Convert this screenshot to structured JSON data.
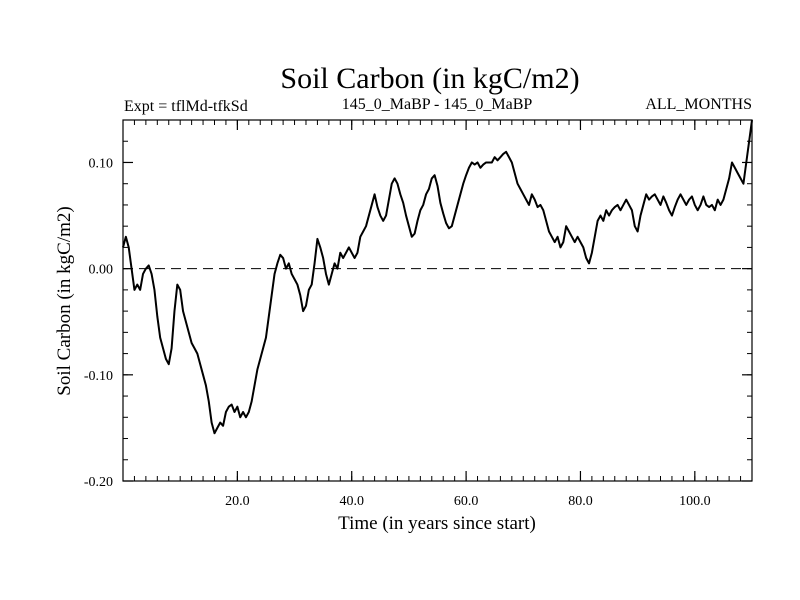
{
  "chart_data": {
    "type": "line",
    "title": "Soil Carbon (in kgC/m2)",
    "subtitle_left": "Expt = tflMd-tfkSd",
    "subtitle_center": "145_0_MaBP - 145_0_MaBP",
    "subtitle_right": "ALL_MONTHS",
    "xlabel": "Time (in years since start)",
    "ylabel": "Soil Carbon (in kgC/m2)",
    "xlim": [
      0,
      110
    ],
    "ylim": [
      -0.2,
      0.14
    ],
    "x_ticks": [
      {
        "value": 20,
        "label": "20.0"
      },
      {
        "value": 40,
        "label": "40.0"
      },
      {
        "value": 60,
        "label": "60.0"
      },
      {
        "value": 80,
        "label": "80.0"
      },
      {
        "value": 100,
        "label": "100.0"
      }
    ],
    "y_ticks": [
      {
        "value": 0.1,
        "label": "0.10"
      },
      {
        "value": 0.0,
        "label": "0.00"
      },
      {
        "value": -0.1,
        "label": "-0.10"
      },
      {
        "value": -0.2,
        "label": "-0.20"
      }
    ],
    "x_minor_step": 2,
    "y_minor_step": 0.02,
    "zero_line": {
      "y": 0,
      "style": "dashed"
    },
    "series": [
      {
        "name": "Soil Carbon",
        "color": "#000000",
        "points": [
          [
            0,
            0.02
          ],
          [
            0.5,
            0.03
          ],
          [
            1,
            0.02
          ],
          [
            1.5,
            0.0
          ],
          [
            2,
            -0.02
          ],
          [
            2.5,
            -0.015
          ],
          [
            3,
            -0.02
          ],
          [
            3.5,
            -0.005
          ],
          [
            4,
            0.0
          ],
          [
            4.5,
            0.003
          ],
          [
            5,
            -0.005
          ],
          [
            5.5,
            -0.02
          ],
          [
            6,
            -0.045
          ],
          [
            6.5,
            -0.065
          ],
          [
            7,
            -0.075
          ],
          [
            7.5,
            -0.085
          ],
          [
            8,
            -0.09
          ],
          [
            8.5,
            -0.075
          ],
          [
            9,
            -0.04
          ],
          [
            9.5,
            -0.015
          ],
          [
            10,
            -0.02
          ],
          [
            10.5,
            -0.04
          ],
          [
            11,
            -0.05
          ],
          [
            11.5,
            -0.06
          ],
          [
            12,
            -0.07
          ],
          [
            12.5,
            -0.075
          ],
          [
            13,
            -0.08
          ],
          [
            13.5,
            -0.09
          ],
          [
            14,
            -0.1
          ],
          [
            14.5,
            -0.11
          ],
          [
            15,
            -0.125
          ],
          [
            15.5,
            -0.145
          ],
          [
            16,
            -0.155
          ],
          [
            16.5,
            -0.15
          ],
          [
            17,
            -0.145
          ],
          [
            17.5,
            -0.148
          ],
          [
            18,
            -0.135
          ],
          [
            18.5,
            -0.13
          ],
          [
            19,
            -0.128
          ],
          [
            19.5,
            -0.135
          ],
          [
            20,
            -0.13
          ],
          [
            20.5,
            -0.14
          ],
          [
            21,
            -0.135
          ],
          [
            21.5,
            -0.14
          ],
          [
            22,
            -0.135
          ],
          [
            22.5,
            -0.125
          ],
          [
            23,
            -0.11
          ],
          [
            23.5,
            -0.095
          ],
          [
            24,
            -0.085
          ],
          [
            24.5,
            -0.075
          ],
          [
            25,
            -0.065
          ],
          [
            25.5,
            -0.045
          ],
          [
            26,
            -0.025
          ],
          [
            26.5,
            -0.005
          ],
          [
            27,
            0.005
          ],
          [
            27.5,
            0.013
          ],
          [
            28,
            0.01
          ],
          [
            28.5,
            0.0
          ],
          [
            29,
            0.005
          ],
          [
            29.5,
            -0.005
          ],
          [
            30,
            -0.01
          ],
          [
            30.5,
            -0.015
          ],
          [
            31,
            -0.025
          ],
          [
            31.5,
            -0.04
          ],
          [
            32,
            -0.035
          ],
          [
            32.5,
            -0.02
          ],
          [
            33,
            -0.015
          ],
          [
            33.5,
            0.005
          ],
          [
            34,
            0.028
          ],
          [
            34.5,
            0.02
          ],
          [
            35,
            0.01
          ],
          [
            35.5,
            -0.005
          ],
          [
            36,
            -0.015
          ],
          [
            36.5,
            -0.005
          ],
          [
            37,
            0.005
          ],
          [
            37.5,
            0.0
          ],
          [
            38,
            0.015
          ],
          [
            38.5,
            0.01
          ],
          [
            39,
            0.015
          ],
          [
            39.5,
            0.02
          ],
          [
            40,
            0.015
          ],
          [
            40.5,
            0.01
          ],
          [
            41,
            0.015
          ],
          [
            41.5,
            0.03
          ],
          [
            42,
            0.035
          ],
          [
            42.5,
            0.04
          ],
          [
            43,
            0.05
          ],
          [
            43.5,
            0.06
          ],
          [
            44,
            0.07
          ],
          [
            44.5,
            0.058
          ],
          [
            45,
            0.05
          ],
          [
            45.5,
            0.045
          ],
          [
            46,
            0.05
          ],
          [
            46.5,
            0.065
          ],
          [
            47,
            0.08
          ],
          [
            47.5,
            0.085
          ],
          [
            48,
            0.08
          ],
          [
            48.5,
            0.07
          ],
          [
            49,
            0.062
          ],
          [
            49.5,
            0.05
          ],
          [
            50,
            0.04
          ],
          [
            50.5,
            0.03
          ],
          [
            51,
            0.033
          ],
          [
            51.5,
            0.045
          ],
          [
            52,
            0.055
          ],
          [
            52.5,
            0.06
          ],
          [
            53,
            0.07
          ],
          [
            53.5,
            0.075
          ],
          [
            54,
            0.085
          ],
          [
            54.5,
            0.088
          ],
          [
            55,
            0.078
          ],
          [
            55.5,
            0.062
          ],
          [
            56,
            0.052
          ],
          [
            56.5,
            0.043
          ],
          [
            57,
            0.038
          ],
          [
            57.5,
            0.04
          ],
          [
            58,
            0.05
          ],
          [
            58.5,
            0.06
          ],
          [
            59,
            0.07
          ],
          [
            59.5,
            0.08
          ],
          [
            60,
            0.088
          ],
          [
            60.5,
            0.095
          ],
          [
            61,
            0.1
          ],
          [
            61.5,
            0.098
          ],
          [
            62,
            0.1
          ],
          [
            62.5,
            0.095
          ],
          [
            63,
            0.098
          ],
          [
            63.5,
            0.1
          ],
          [
            64,
            0.1
          ],
          [
            64.5,
            0.1
          ],
          [
            65,
            0.105
          ],
          [
            65.5,
            0.102
          ],
          [
            66,
            0.105
          ],
          [
            66.5,
            0.108
          ],
          [
            67,
            0.11
          ],
          [
            67.5,
            0.105
          ],
          [
            68,
            0.1
          ],
          [
            68.5,
            0.09
          ],
          [
            69,
            0.08
          ],
          [
            69.5,
            0.075
          ],
          [
            70,
            0.07
          ],
          [
            70.5,
            0.065
          ],
          [
            71,
            0.06
          ],
          [
            71.5,
            0.07
          ],
          [
            72,
            0.065
          ],
          [
            72.5,
            0.058
          ],
          [
            73,
            0.06
          ],
          [
            73.5,
            0.055
          ],
          [
            74,
            0.045
          ],
          [
            74.5,
            0.035
          ],
          [
            75,
            0.03
          ],
          [
            75.5,
            0.025
          ],
          [
            76,
            0.03
          ],
          [
            76.5,
            0.02
          ],
          [
            77,
            0.025
          ],
          [
            77.5,
            0.04
          ],
          [
            78,
            0.035
          ],
          [
            78.5,
            0.03
          ],
          [
            79,
            0.025
          ],
          [
            79.5,
            0.03
          ],
          [
            80,
            0.025
          ],
          [
            80.5,
            0.02
          ],
          [
            81,
            0.01
          ],
          [
            81.5,
            0.005
          ],
          [
            82,
            0.015
          ],
          [
            82.5,
            0.03
          ],
          [
            83,
            0.045
          ],
          [
            83.5,
            0.05
          ],
          [
            84,
            0.045
          ],
          [
            84.5,
            0.055
          ],
          [
            85,
            0.05
          ],
          [
            85.5,
            0.055
          ],
          [
            86,
            0.058
          ],
          [
            86.5,
            0.06
          ],
          [
            87,
            0.055
          ],
          [
            87.5,
            0.06
          ],
          [
            88,
            0.065
          ],
          [
            88.5,
            0.06
          ],
          [
            89,
            0.055
          ],
          [
            89.5,
            0.04
          ],
          [
            90,
            0.035
          ],
          [
            90.5,
            0.05
          ],
          [
            91,
            0.06
          ],
          [
            91.5,
            0.07
          ],
          [
            92,
            0.065
          ],
          [
            92.5,
            0.068
          ],
          [
            93,
            0.07
          ],
          [
            93.5,
            0.065
          ],
          [
            94,
            0.06
          ],
          [
            94.5,
            0.068
          ],
          [
            95,
            0.062
          ],
          [
            95.5,
            0.055
          ],
          [
            96,
            0.05
          ],
          [
            96.5,
            0.058
          ],
          [
            97,
            0.065
          ],
          [
            97.5,
            0.07
          ],
          [
            98,
            0.065
          ],
          [
            98.5,
            0.06
          ],
          [
            99,
            0.065
          ],
          [
            99.5,
            0.068
          ],
          [
            100,
            0.06
          ],
          [
            100.5,
            0.055
          ],
          [
            101,
            0.06
          ],
          [
            101.5,
            0.068
          ],
          [
            102,
            0.06
          ],
          [
            102.5,
            0.058
          ],
          [
            103,
            0.06
          ],
          [
            103.5,
            0.055
          ],
          [
            104,
            0.065
          ],
          [
            104.5,
            0.06
          ],
          [
            105,
            0.065
          ],
          [
            105.5,
            0.075
          ],
          [
            106,
            0.085
          ],
          [
            106.5,
            0.1
          ],
          [
            107,
            0.095
          ],
          [
            107.5,
            0.09
          ],
          [
            108,
            0.085
          ],
          [
            108.5,
            0.08
          ],
          [
            109,
            0.1
          ],
          [
            109.5,
            0.12
          ],
          [
            110,
            0.14
          ]
        ]
      }
    ]
  }
}
